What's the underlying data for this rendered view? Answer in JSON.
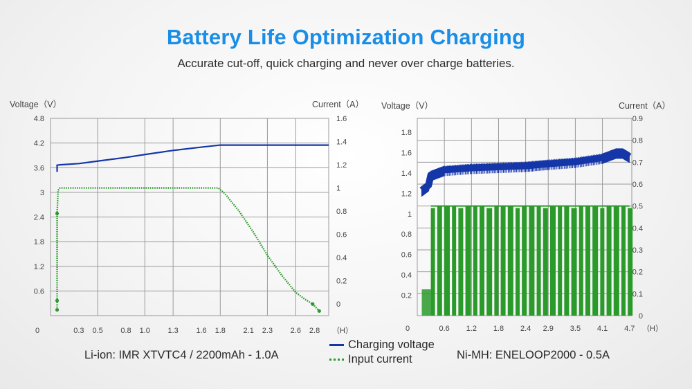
{
  "header": {
    "title": "Battery Life Optimization Charging",
    "subtitle": "Accurate cut-off, quick charging and never over charge batteries."
  },
  "colors": {
    "title": "#1a8ee6",
    "voltage_line": "#1436a8",
    "current_line": "#2a9a2a",
    "grid": "#9a9a9a"
  },
  "legend": {
    "voltage_label": "Charging voltage",
    "current_label": "Input current"
  },
  "chart_data": [
    {
      "type": "line",
      "caption": "Li-ion: IMR XTVTC4 / 2200mAh - 1.0A",
      "ylabel_left": "Voltage（V）",
      "ylabel_right": "Current（A）",
      "xunit": "（H）",
      "x_origin_label": "0",
      "xticks": [
        "0.3",
        "0.5",
        "0.8",
        "1.0",
        "1.3",
        "1.6",
        "1.8",
        "2.1",
        "2.3",
        "2.6",
        "2.8"
      ],
      "yticks_left": [
        "4.8",
        "4.2",
        "3.6",
        "3",
        "2.4",
        "1.8",
        "1.2",
        "0.6"
      ],
      "yticks_right": [
        "1.6",
        "1.4",
        "1.2",
        "1",
        "0.8",
        "0.6",
        "0.4",
        "0.2",
        "0"
      ],
      "xlim": [
        0,
        2.95
      ],
      "ylim_left": [
        0,
        4.8
      ],
      "ylim_right": [
        -0.1,
        1.6
      ],
      "grid": true,
      "series": [
        {
          "name": "Charging voltage",
          "axis": "left",
          "x": [
            0.07,
            0.07,
            0.1,
            0.3,
            0.5,
            0.8,
            1.0,
            1.3,
            1.6,
            1.8,
            1.85,
            2.1,
            2.4,
            2.7,
            2.95
          ],
          "y": [
            3.5,
            3.66,
            3.67,
            3.7,
            3.76,
            3.85,
            3.92,
            4.02,
            4.1,
            4.15,
            4.15,
            4.15,
            4.15,
            4.15,
            4.15
          ]
        },
        {
          "name": "Input current",
          "axis": "right",
          "x": [
            0.07,
            0.07,
            0.07,
            0.08,
            0.1,
            0.3,
            0.6,
            1.0,
            1.4,
            1.78,
            1.85,
            2.0,
            2.15,
            2.3,
            2.45,
            2.6,
            2.7,
            2.78,
            2.85
          ],
          "y": [
            -0.05,
            0.03,
            0.78,
            0.98,
            1.0,
            1.0,
            1.0,
            1.0,
            1.0,
            1.0,
            0.95,
            0.8,
            0.62,
            0.42,
            0.25,
            0.1,
            0.04,
            0.0,
            -0.06
          ]
        }
      ]
    },
    {
      "type": "line",
      "caption": "Ni-MH: ENELOOP2000 - 0.5A",
      "ylabel_left": "Voltage（V）",
      "ylabel_right": "Current（A）",
      "xunit": "（H）",
      "x_origin_label": "0",
      "xticks": [
        "0.6",
        "1.2",
        "1.8",
        "2.4",
        "2.9",
        "3.5",
        "4.1",
        "4.7"
      ],
      "yticks_left": [
        "1.8",
        "1.6",
        "1.4",
        "1.2",
        "1",
        "0.8",
        "0.6",
        "0.4",
        "0.2"
      ],
      "yticks_right": [
        "0.9",
        "0.8",
        "0.7",
        "0.6",
        "0.5",
        "0.4",
        "0.3",
        "0.2",
        "0.1",
        "0"
      ],
      "xlim": [
        0,
        4.75
      ],
      "ylim_left": [
        0,
        1.8
      ],
      "ylim_right": [
        0,
        0.9
      ],
      "grid": true,
      "series": [
        {
          "name": "Charging voltage",
          "axis": "left",
          "x": [
            0.1,
            0.25,
            0.3,
            0.6,
            1.2,
            1.8,
            2.4,
            2.9,
            3.5,
            4.1,
            4.4,
            4.55,
            4.7
          ],
          "y": [
            1.23,
            1.28,
            1.38,
            1.43,
            1.45,
            1.46,
            1.47,
            1.49,
            1.51,
            1.55,
            1.6,
            1.6,
            1.56
          ]
        },
        {
          "name": "Input current",
          "axis": "right",
          "x": [
            0.1,
            0.25,
            0.3,
            4.7
          ],
          "y": [
            0.12,
            0.12,
            0.5,
            0.5
          ]
        }
      ]
    }
  ]
}
